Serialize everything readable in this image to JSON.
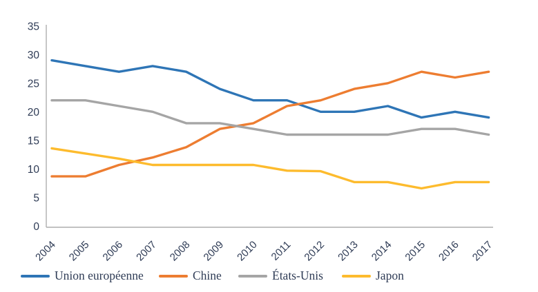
{
  "chart_data": {
    "type": "line",
    "x": [
      "2004",
      "2005",
      "2006",
      "2007",
      "2008",
      "2009",
      "2010",
      "2011",
      "2012",
      "2013",
      "2014",
      "2015",
      "2016",
      "2017"
    ],
    "series": [
      {
        "name": "Union européenne",
        "color": "#2E75B6",
        "values": [
          29,
          28,
          27,
          28,
          27,
          24,
          22,
          22,
          20,
          20,
          21,
          19,
          20,
          19
        ]
      },
      {
        "name": "Chine",
        "color": "#ED7D31",
        "values": [
          8.7,
          8.7,
          10.7,
          12,
          13.8,
          17,
          18,
          21,
          22,
          24,
          25,
          27,
          26,
          27
        ]
      },
      {
        "name": "États-Unis",
        "color": "#A5A5A5",
        "values": [
          22,
          22,
          21,
          20,
          18,
          18,
          17,
          16,
          16,
          16,
          16,
          17,
          17,
          16
        ]
      },
      {
        "name": "Japon",
        "color": "#FDBB2D",
        "values": [
          13.6,
          12.7,
          11.8,
          10.7,
          10.7,
          10.7,
          10.7,
          9.7,
          9.6,
          7.7,
          7.7,
          6.6,
          7.7,
          7.7
        ]
      }
    ],
    "title": "",
    "xlabel": "",
    "ylabel": "",
    "ylim": [
      0,
      35
    ],
    "yticks": [
      0,
      5,
      10,
      15,
      20,
      25,
      30,
      35
    ],
    "grid": false,
    "legend_position": "bottom",
    "axis_color": "#ADADAD",
    "label_color": "#2E3B55"
  }
}
